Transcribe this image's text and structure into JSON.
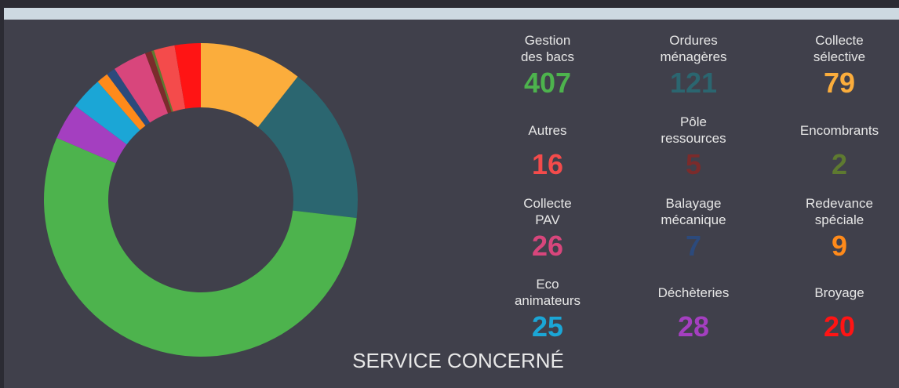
{
  "chart_data": {
    "type": "pie",
    "donut": true,
    "title": "SERVICE CONCERNÉ",
    "categories": [
      "Collecte\nsélective",
      "Ordures\nménagères",
      "Gestion\ndes bacs",
      "Déchèteries",
      "Eco\nanimateurs",
      "Redevance\nspéciale",
      "Balayage\nmécanique",
      "Collecte\nPAV",
      "Pôle\nressources",
      "Encombrants",
      "Autres",
      "Broyage"
    ],
    "values": [
      79,
      121,
      407,
      28,
      25,
      9,
      7,
      26,
      5,
      2,
      16,
      20
    ],
    "colors": [
      "#fbad3c",
      "#2b6670",
      "#4db34d",
      "#a43fc0",
      "#1ba6d6",
      "#ff8a1a",
      "#2c4a7c",
      "#d8467c",
      "#7b2b2b",
      "#5e7a30",
      "#f44b4b",
      "#ff1414"
    ],
    "legend_order": [
      2,
      1,
      0,
      10,
      8,
      9,
      7,
      6,
      5,
      4,
      3,
      11
    ]
  }
}
